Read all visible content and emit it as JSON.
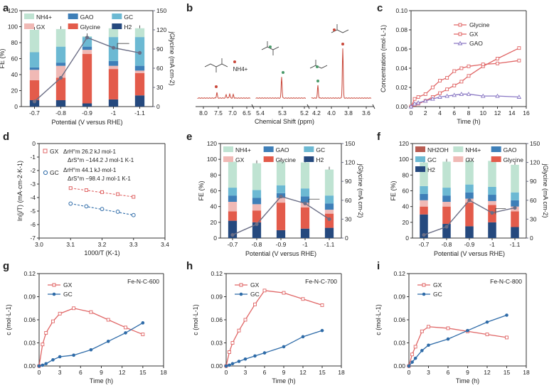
{
  "colors": {
    "nh4": "#bfe3d2",
    "gao": "#3e7fb8",
    "gc": "#6cb9d3",
    "gx": "#f0b9b5",
    "glycine": "#e35b4b",
    "h2": "#25497e",
    "nh2oh": "#b85c52",
    "jline": "#6b6e86",
    "gx_line": "#e06666",
    "gc_line": "#2e6ba8",
    "gao_line": "#8a78c4",
    "nmr": "#c9483b"
  },
  "chart_data": [
    {
      "id": "a",
      "type": "bar",
      "panel_label": "a",
      "categories": [
        "-0.7",
        "-0.8",
        "-0.9",
        "-1",
        "-1.1"
      ],
      "xlabel": "Potential (V versus RHE)",
      "ylabel": "FE (%)",
      "y2label": "jGlycine (mA cm-2)",
      "ylim": [
        0,
        120
      ],
      "y2lim": [
        0,
        150
      ],
      "yticks": [
        "0",
        "20",
        "40",
        "60",
        "80",
        "100",
        "120"
      ],
      "y2ticks": [
        "0",
        "30",
        "60",
        "90",
        "120",
        "150"
      ],
      "legend": [
        "NH4+",
        "GAO",
        "GC",
        "GX",
        "Glycine",
        "H2"
      ],
      "series": [
        {
          "name": "H2",
          "values": [
            8,
            8,
            4,
            9,
            14
          ]
        },
        {
          "name": "Glycine",
          "values": [
            25,
            28,
            62,
            38,
            28
          ]
        },
        {
          "name": "GX",
          "values": [
            13,
            15,
            5,
            4,
            3
          ]
        },
        {
          "name": "GAO",
          "values": [
            3,
            4,
            4,
            6,
            6
          ]
        },
        {
          "name": "GC",
          "values": [
            19,
            20,
            12,
            30,
            36
          ]
        },
        {
          "name": "NH4+",
          "values": [
            28,
            22,
            1,
            11,
            11
          ]
        }
      ],
      "line": {
        "name": "jGlycine",
        "values": [
          8,
          45,
          108,
          92,
          84
        ]
      }
    },
    {
      "id": "b",
      "type": "line",
      "panel_label": "b",
      "xlabel": "Chemical Shift (ppm)",
      "axis_ticks": [
        "8.0",
        "7.5",
        "7.0",
        "6.5",
        "5.4",
        "5.3",
        "5.2",
        "4.2",
        "4.0",
        "3.8",
        "3.6"
      ],
      "labels": [
        "NH4+"
      ]
    },
    {
      "id": "c",
      "type": "line",
      "panel_label": "c",
      "xlabel": "Time (h)",
      "ylabel": "Concentration (mol·L-1)",
      "xlim": [
        0,
        16
      ],
      "ylim": [
        0,
        0.1
      ],
      "xticks": [
        "0",
        "2",
        "4",
        "6",
        "8",
        "10",
        "12",
        "14",
        "16"
      ],
      "yticks": [
        "0.00",
        "0.02",
        "0.04",
        "0.06",
        "0.08",
        "0.10"
      ],
      "series": [
        {
          "name": "Glycine",
          "x": [
            0,
            0.5,
            1,
            2,
            3,
            4,
            5,
            6,
            7,
            8,
            10,
            12,
            15
          ],
          "values": [
            0,
            0.002,
            0.003,
            0.006,
            0.01,
            0.014,
            0.018,
            0.022,
            0.026,
            0.032,
            0.042,
            0.05,
            0.061
          ]
        },
        {
          "name": "GX",
          "x": [
            0,
            0.5,
            1,
            2,
            3,
            4,
            5,
            6,
            7,
            8,
            10,
            12,
            15
          ],
          "values": [
            0,
            0.008,
            0.01,
            0.013,
            0.02,
            0.027,
            0.03,
            0.037,
            0.04,
            0.042,
            0.044,
            0.045,
            0.048
          ]
        },
        {
          "name": "GAO",
          "x": [
            0,
            0.5,
            1,
            2,
            3,
            4,
            5,
            6,
            7,
            8,
            10,
            12,
            15
          ],
          "values": [
            0,
            0.003,
            0.004,
            0.006,
            0.008,
            0.01,
            0.011,
            0.012,
            0.013,
            0.013,
            0.011,
            0.011,
            0.01
          ]
        }
      ]
    },
    {
      "id": "d",
      "type": "scatter",
      "panel_label": "d",
      "xlabel": "1000/T (K-1)",
      "ylabel": "ln(j/T) (mA·cm-2·K-1)",
      "xlim": [
        3.0,
        3.4
      ],
      "ylim": [
        -7,
        0
      ],
      "xticks": [
        "3.0",
        "3.1",
        "3.2",
        "3.3",
        "3.4"
      ],
      "yticks": [
        "0",
        "-1",
        "-2",
        "-3",
        "-4",
        "-5",
        "-6",
        "-7"
      ],
      "series": [
        {
          "name": "GX",
          "x": [
            3.1,
            3.15,
            3.2,
            3.25,
            3.3
          ],
          "values": [
            -3.3,
            -3.45,
            -3.6,
            -3.75,
            -3.95
          ]
        },
        {
          "name": "GC",
          "x": [
            3.1,
            3.15,
            3.2,
            3.25,
            3.3
          ],
          "values": [
            -4.45,
            -4.65,
            -4.85,
            -5.05,
            -5.3
          ]
        }
      ],
      "annotations": {
        "gx_label": "GX",
        "gx_dh": "ΔrH°m 26.2 kJ mol-1",
        "gx_ds": "ΔrS°m −144.2 J mol-1 K-1",
        "gc_label": "GC",
        "gc_dh": "ΔrH°m 44.1 kJ·mol-1",
        "gc_ds": "ΔrS°m −98.4 J mol-1 K-1"
      }
    },
    {
      "id": "e",
      "type": "bar",
      "panel_label": "e",
      "categories": [
        "-0.7",
        "-0.8",
        "-0.9",
        "-1",
        "-1.1"
      ],
      "xlabel": "Potential (V versus RHE)",
      "ylabel": "FE (%)",
      "y2label": "jGlycine (mA cm-2)",
      "ylim": [
        0,
        120
      ],
      "y2lim": [
        0,
        150
      ],
      "yticks": [
        "0",
        "20",
        "40",
        "60",
        "80",
        "100",
        "120"
      ],
      "y2ticks": [
        "0",
        "30",
        "60",
        "90",
        "120",
        "150"
      ],
      "legend": [
        "NH4+",
        "GAO",
        "GC",
        "GX",
        "Glycine",
        "H2"
      ],
      "series": [
        {
          "name": "H2",
          "values": [
            22,
            20,
            10,
            12,
            13
          ]
        },
        {
          "name": "Glycine",
          "values": [
            12,
            15,
            35,
            27,
            18
          ]
        },
        {
          "name": "GX",
          "values": [
            12,
            8,
            6,
            6,
            5
          ]
        },
        {
          "name": "GAO",
          "values": [
            8,
            8,
            6,
            8,
            8
          ]
        },
        {
          "name": "GC",
          "values": [
            10,
            10,
            10,
            10,
            10
          ]
        },
        {
          "name": "NH4+",
          "values": [
            33,
            34,
            30,
            33,
            33
          ]
        }
      ],
      "line": {
        "name": "jGlycine",
        "values": [
          5,
          22,
          66,
          55,
          30
        ]
      }
    },
    {
      "id": "f",
      "type": "bar",
      "panel_label": "f",
      "categories": [
        "-0.7",
        "-0.8",
        "-0.9",
        "-1",
        "-1.1"
      ],
      "xlabel": "Potential (V versus RHE)",
      "ylabel": "FE (%)",
      "y2label": "jGlycine (mA cm-2)",
      "ylim": [
        0,
        120
      ],
      "y2lim": [
        0,
        150
      ],
      "yticks": [
        "0",
        "20",
        "40",
        "60",
        "80",
        "100",
        "120"
      ],
      "y2ticks": [
        "0",
        "30",
        "60",
        "90",
        "120",
        "150"
      ],
      "legend": [
        "NH2OH",
        "NH4+",
        "GAO",
        "GC",
        "GX",
        "Glycine",
        "H2"
      ],
      "series": [
        {
          "name": "H2",
          "values": [
            30,
            18,
            15,
            20,
            14
          ]
        },
        {
          "name": "Glycine",
          "values": [
            10,
            22,
            30,
            22,
            20
          ]
        },
        {
          "name": "GX",
          "values": [
            8,
            6,
            5,
            5,
            6
          ]
        },
        {
          "name": "GAO",
          "values": [
            8,
            8,
            8,
            8,
            8
          ]
        },
        {
          "name": "GC",
          "values": [
            10,
            10,
            10,
            10,
            10
          ]
        },
        {
          "name": "NH4+",
          "values": [
            30,
            33,
            30,
            33,
            35
          ]
        }
      ],
      "line": {
        "name": "jGlycine",
        "values": [
          5,
          18,
          60,
          40,
          48
        ]
      }
    },
    {
      "id": "g",
      "type": "line",
      "panel_label": "g",
      "title": "Fe-N-C-600",
      "xlabel": "Time (h)",
      "ylabel": "c (mol·L-1)",
      "xlim": [
        0,
        18
      ],
      "ylim": [
        0,
        0.12
      ],
      "xticks": [
        "0",
        "3",
        "6",
        "9",
        "12",
        "15",
        "18"
      ],
      "yticks": [
        "0.00",
        "0.03",
        "0.06",
        "0.09",
        "0.12"
      ],
      "series": [
        {
          "name": "GX",
          "x": [
            0,
            0.5,
            1,
            2,
            3,
            5,
            7.5,
            10,
            12.5,
            15
          ],
          "values": [
            0,
            0.028,
            0.043,
            0.058,
            0.068,
            0.075,
            0.07,
            0.06,
            0.05,
            0.041
          ]
        },
        {
          "name": "GC",
          "x": [
            0,
            0.5,
            1,
            2,
            3,
            5,
            7.5,
            10,
            12.5,
            15
          ],
          "values": [
            0,
            0.001,
            0.003,
            0.008,
            0.012,
            0.014,
            0.021,
            0.032,
            0.043,
            0.056
          ]
        }
      ]
    },
    {
      "id": "h",
      "type": "line",
      "panel_label": "h",
      "title": "Fe-N-C-700",
      "xlabel": "Time (h)",
      "ylabel": "c (mol·L-1)",
      "xlim": [
        0,
        18
      ],
      "ylim": [
        0,
        0.12
      ],
      "xticks": [
        "0",
        "3",
        "6",
        "9",
        "12",
        "15",
        "18"
      ],
      "yticks": [
        "0.00",
        "0.03",
        "0.06",
        "0.09",
        "0.12"
      ],
      "series": [
        {
          "name": "GX",
          "x": [
            0,
            0.5,
            1,
            2,
            3,
            4.5,
            6,
            9,
            12,
            15
          ],
          "values": [
            0,
            0.018,
            0.03,
            0.046,
            0.06,
            0.08,
            0.098,
            0.095,
            0.087,
            0.079
          ]
        },
        {
          "name": "GC",
          "x": [
            0,
            0.5,
            1,
            2,
            3,
            4.5,
            6,
            9,
            12,
            15
          ],
          "values": [
            0,
            0.001,
            0.003,
            0.006,
            0.009,
            0.013,
            0.017,
            0.025,
            0.038,
            0.046
          ]
        }
      ]
    },
    {
      "id": "i",
      "type": "line",
      "panel_label": "i",
      "title": "Fe-N-C-800",
      "xlabel": "Time (h)",
      "ylabel": "c (mol·L-1)",
      "xlim": [
        0,
        18
      ],
      "ylim": [
        0,
        0.12
      ],
      "xticks": [
        "0",
        "3",
        "6",
        "9",
        "12",
        "15",
        "18"
      ],
      "yticks": [
        "0.00",
        "0.03",
        "0.06",
        "0.09",
        "0.12"
      ],
      "series": [
        {
          "name": "GX",
          "x": [
            0,
            0.5,
            1,
            2,
            3,
            6,
            9,
            12,
            15
          ],
          "values": [
            0,
            0.015,
            0.025,
            0.045,
            0.051,
            0.049,
            0.045,
            0.041,
            0.037
          ]
        },
        {
          "name": "GC",
          "x": [
            0,
            0.5,
            1,
            2,
            3,
            6,
            9,
            12,
            15
          ],
          "values": [
            0,
            0.005,
            0.01,
            0.02,
            0.027,
            0.035,
            0.046,
            0.057,
            0.066
          ]
        }
      ]
    }
  ]
}
